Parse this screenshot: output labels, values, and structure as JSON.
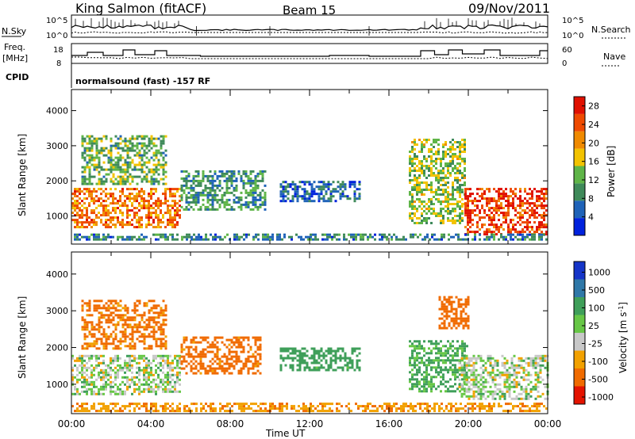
{
  "header": {
    "station": "King Salmon (fitACF)",
    "beam": "Beam 15",
    "date": "09/Nov/2011"
  },
  "panels": {
    "noise": {
      "left_label": "N.Sky",
      "right_label": "N.Search",
      "tick_top": "10^5",
      "tick_bottom": "10^0"
    },
    "freq": {
      "label_line1": "Freq.",
      "label_line2": "[MHz]",
      "right_label": "Nave",
      "left_ticks": [
        "18",
        "8"
      ],
      "right_ticks": [
        "60",
        "0"
      ]
    },
    "cpid": {
      "label": "CPID",
      "text": "normalsound (fast) -157 RF"
    }
  },
  "colors": {
    "power": [
      "#0022dd",
      "#1f63b8",
      "#3f8a5a",
      "#5fb548",
      "#f3c300",
      "#f08a00",
      "#ef4a00",
      "#e01000"
    ],
    "velocity": [
      "#1535c8",
      "#2f78a8",
      "#3f9f5a",
      "#67c746",
      "#c8c8c8",
      "#f2a100",
      "#f06b00",
      "#e41300"
    ]
  },
  "chart_data": [
    {
      "type": "heatmap",
      "name": "power-panel",
      "ylabel": "Slant Range [km]",
      "y_ticks": [
        1000,
        2000,
        3000,
        4000
      ],
      "ylim": [
        200,
        4600
      ],
      "xlim": [
        0,
        24
      ],
      "x_tick_labels": [
        "00:00",
        "04:00",
        "08:00",
        "12:00",
        "16:00",
        "20:00",
        "00:00"
      ],
      "colorbar_label": "Power [dB]",
      "colorbar_ticks": [
        "28",
        "24",
        "20",
        "16",
        "12",
        "8",
        "4"
      ],
      "colorbar_range": [
        0,
        30
      ],
      "regions": [
        {
          "t0": 0.0,
          "t1": 5.5,
          "r0": 700,
          "r1": 1800,
          "level": 22
        },
        {
          "t0": 0.5,
          "t1": 4.8,
          "r0": 1900,
          "r1": 3300,
          "level": 12
        },
        {
          "t0": 5.5,
          "t1": 9.8,
          "r0": 1200,
          "r1": 2300,
          "level": 10
        },
        {
          "t0": 10.5,
          "t1": 14.5,
          "r0": 1400,
          "r1": 2000,
          "level": 6
        },
        {
          "t0": 17.0,
          "t1": 19.8,
          "r0": 800,
          "r1": 3200,
          "level": 14
        },
        {
          "t0": 19.8,
          "t1": 24.0,
          "r0": 500,
          "r1": 1800,
          "level": 26
        },
        {
          "t0": 0.0,
          "t1": 24.0,
          "r0": 300,
          "r1": 500,
          "level": 8
        }
      ]
    },
    {
      "type": "heatmap",
      "name": "velocity-panel",
      "ylabel": "Slant Range [km]",
      "y_ticks": [
        1000,
        2000,
        3000,
        4000
      ],
      "ylim": [
        200,
        4600
      ],
      "xlim": [
        0,
        24
      ],
      "x_tick_labels": [
        "00:00",
        "04:00",
        "08:00",
        "12:00",
        "16:00",
        "20:00",
        "00:00"
      ],
      "xlabel": "Time UT",
      "colorbar_label": "Velocity [m s^-1]",
      "colorbar_ticks": [
        "1000",
        "500",
        "100",
        "25",
        "-25",
        "-100",
        "-500",
        "-1000"
      ],
      "regions": [
        {
          "t0": 0.0,
          "t1": 5.5,
          "r0": 700,
          "r1": 1800,
          "velocity": 0
        },
        {
          "t0": 0.5,
          "t1": 4.8,
          "r0": 2000,
          "r1": 3300,
          "velocity": -150
        },
        {
          "t0": 5.5,
          "t1": 9.5,
          "r0": 1300,
          "r1": 2300,
          "velocity": -200
        },
        {
          "t0": 10.5,
          "t1": 14.5,
          "r0": 1400,
          "r1": 2000,
          "velocity": 60
        },
        {
          "t0": 17.0,
          "t1": 20.0,
          "r0": 800,
          "r1": 2200,
          "velocity": 40
        },
        {
          "t0": 18.5,
          "t1": 20.0,
          "r0": 2500,
          "r1": 3400,
          "velocity": -300
        },
        {
          "t0": 19.5,
          "t1": 24.0,
          "r0": 600,
          "r1": 1800,
          "velocity": 0
        },
        {
          "t0": 0.0,
          "t1": 24.0,
          "r0": 300,
          "r1": 500,
          "velocity": -80
        }
      ]
    }
  ]
}
